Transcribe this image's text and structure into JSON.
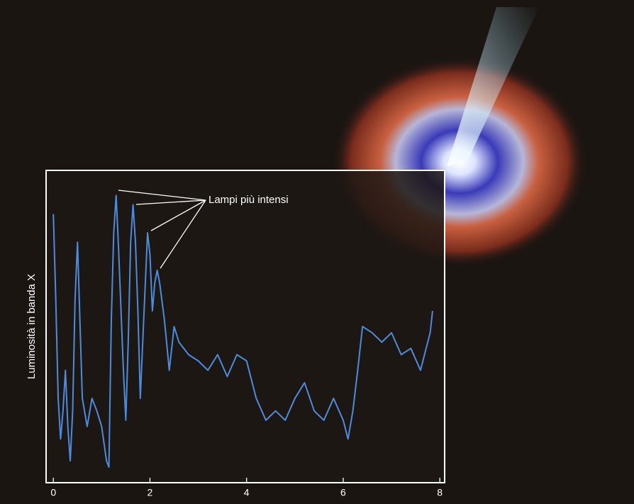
{
  "chart_data": {
    "type": "line",
    "ylabel": "Luminosità in banda X",
    "annotation": "Lampi più intensi",
    "xlim": [
      -0.15,
      8.1
    ],
    "xticks": [
      0,
      2,
      4,
      6,
      8
    ],
    "ylim": [
      0,
      100
    ],
    "series": [
      {
        "name": null,
        "color": "#4b8cdc",
        "x": [
          0,
          0.05,
          0.1,
          0.15,
          0.2,
          0.25,
          0.3,
          0.35,
          0.4,
          0.45,
          0.5,
          0.55,
          0.6,
          0.7,
          0.8,
          0.9,
          1.0,
          1.1,
          1.15,
          1.2,
          1.25,
          1.3,
          1.35,
          1.45,
          1.5,
          1.55,
          1.6,
          1.65,
          1.7,
          1.75,
          1.8,
          1.85,
          1.95,
          2.0,
          2.05,
          2.1,
          2.15,
          2.2,
          2.3,
          2.4,
          2.5,
          2.6,
          2.8,
          3.0,
          3.2,
          3.4,
          3.6,
          3.8,
          4.0,
          4.2,
          4.4,
          4.6,
          4.8,
          5.0,
          5.2,
          5.4,
          5.6,
          5.8,
          6.0,
          6.1,
          6.2,
          6.3,
          6.4,
          6.6,
          6.8,
          7.0,
          7.2,
          7.4,
          7.6,
          7.8,
          7.85
        ],
        "values": [
          86,
          59,
          27,
          14,
          23,
          36,
          18,
          7,
          23,
          59,
          77,
          52,
          27,
          18,
          27,
          23,
          18,
          7,
          5,
          52,
          80,
          92,
          75,
          36,
          20,
          45,
          77,
          89,
          77,
          55,
          27,
          45,
          80,
          73,
          55,
          64,
          68,
          64,
          52,
          36,
          50,
          45,
          41,
          39,
          36,
          41,
          34,
          41,
          39,
          27,
          20,
          23,
          20,
          27,
          32,
          23,
          20,
          27,
          20,
          14,
          23,
          36,
          50,
          48,
          45,
          48,
          41,
          43,
          36,
          48,
          55
        ]
      }
    ]
  }
}
